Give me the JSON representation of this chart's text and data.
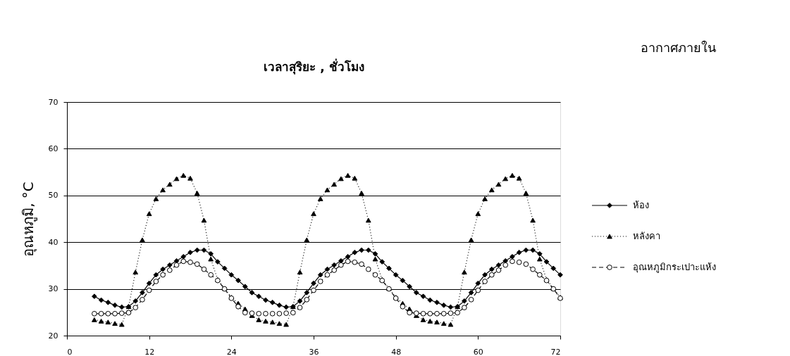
{
  "chart_data": {
    "type": "line",
    "xlabel": "เวลาสุริยะ , ชั่วโมง",
    "subtitle": "อากาศภายใน",
    "ylabel": "อุณหภูมิ, °C",
    "x": [
      4,
      5,
      6,
      7,
      8,
      9,
      10,
      11,
      12,
      13,
      14,
      15,
      16,
      17,
      18,
      19,
      20,
      21,
      22,
      23,
      24,
      25,
      26,
      27,
      28,
      29,
      30,
      31,
      32,
      33,
      34,
      35,
      36,
      37,
      38,
      39,
      40,
      41,
      42,
      43,
      44,
      45,
      46,
      47,
      48,
      49,
      50,
      51,
      52,
      53,
      54,
      55,
      56,
      57,
      58,
      59,
      60,
      61,
      62,
      63,
      64,
      65,
      66,
      67,
      68,
      69,
      70,
      71,
      72
    ],
    "series": [
      {
        "name": "ห้อง",
        "color": "#000000",
        "marker": "diamond",
        "line_style": "solid",
        "values": [
          28.4,
          27.6,
          27.1,
          26.5,
          26.1,
          26.2,
          27.4,
          29.2,
          31.2,
          33,
          34.2,
          35.1,
          36,
          36.9,
          37.8,
          38.3,
          38.3,
          37.5,
          35.8,
          34.4,
          33,
          31.8,
          30.5,
          29.2,
          28.4,
          27.6,
          27.1,
          26.5,
          26.1,
          26.2,
          27.4,
          29.2,
          31.2,
          33,
          34.2,
          35.1,
          36,
          36.9,
          37.8,
          38.3,
          38.3,
          37.5,
          35.8,
          34.4,
          33,
          31.8,
          30.5,
          29.2,
          28.4,
          27.6,
          27.1,
          26.5,
          26.1,
          26.2,
          27.4,
          29.2,
          31.2,
          33,
          34.2,
          35.1,
          36,
          36.9,
          37.8,
          38.3,
          38.3,
          37.5,
          35.8,
          34.4,
          33
        ]
      },
      {
        "name": "หลังคา",
        "color": "#000000",
        "marker": "triangle",
        "line_style": "dotted",
        "values": [
          23.4,
          23.1,
          22.9,
          22.6,
          22.4,
          26.2,
          33.6,
          40.5,
          46.1,
          49.3,
          51.2,
          52.4,
          53.6,
          54.3,
          53.7,
          50.5,
          44.7,
          36.4,
          32,
          30.1,
          28.2,
          26.9,
          25.7,
          24.3,
          23.4,
          23.1,
          22.9,
          22.6,
          22.4,
          26.2,
          33.6,
          40.5,
          46.1,
          49.3,
          51.2,
          52.4,
          53.6,
          54.3,
          53.7,
          50.5,
          44.7,
          36.4,
          32,
          30.1,
          28.2,
          26.9,
          25.7,
          24.3,
          23.4,
          23.1,
          22.9,
          22.6,
          22.4,
          26.2,
          33.6,
          40.5,
          46.1,
          49.3,
          51.2,
          52.4,
          53.6,
          54.3,
          53.7,
          50.5,
          44.7,
          36.4,
          32,
          30.1,
          28.2
        ]
      },
      {
        "name": "อุณหภูมิกระเปาะแห้ง",
        "color": "#000000",
        "marker": "circle",
        "line_style": "dashed",
        "values": [
          24.7,
          24.7,
          24.7,
          24.7,
          24.8,
          24.9,
          26,
          27.7,
          29.7,
          31.6,
          33,
          34,
          35.1,
          35.9,
          35.7,
          35.3,
          34.2,
          33,
          31.8,
          30,
          28,
          26.2,
          24.9,
          24.8,
          24.7,
          24.7,
          24.7,
          24.7,
          24.8,
          24.9,
          26,
          27.7,
          29.7,
          31.6,
          33,
          34,
          35.1,
          35.9,
          35.7,
          35.3,
          34.2,
          33,
          31.8,
          30,
          28,
          26.2,
          24.9,
          24.8,
          24.7,
          24.7,
          24.7,
          24.7,
          24.8,
          24.9,
          26,
          27.7,
          29.7,
          31.6,
          33,
          34,
          35.1,
          35.9,
          35.7,
          35.3,
          34.2,
          33,
          31.8,
          30,
          28
        ]
      }
    ],
    "xlim": [
      0,
      72
    ],
    "xticks": [
      0,
      12,
      24,
      36,
      48,
      60,
      72
    ],
    "ylim": [
      20,
      70
    ],
    "yticks": [
      20,
      30,
      40,
      50,
      60,
      70
    ],
    "grid": "y",
    "legend": "right"
  }
}
